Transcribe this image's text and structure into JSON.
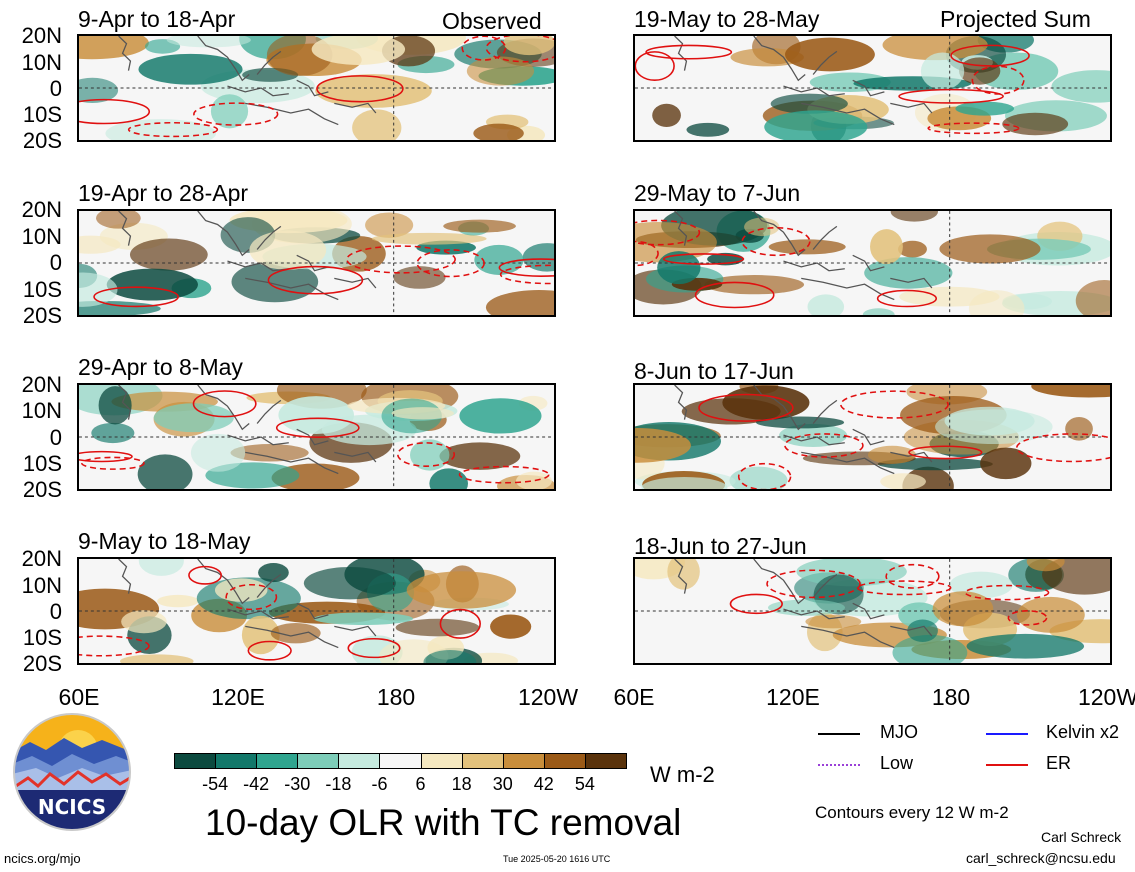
{
  "panels": [
    {
      "id": "p1",
      "title": "9-Apr to 18-Apr",
      "tag": "Observed",
      "seed": 3
    },
    {
      "id": "p2",
      "title": "19-May to 28-May",
      "tag": "Projected Sum",
      "seed": 11
    },
    {
      "id": "p3",
      "title": "19-Apr to 28-Apr",
      "tag": "",
      "seed": 7
    },
    {
      "id": "p4",
      "title": "29-May to 7-Jun",
      "tag": "",
      "seed": 19
    },
    {
      "id": "p5",
      "title": "29-Apr to 8-May",
      "tag": "",
      "seed": 23
    },
    {
      "id": "p6",
      "title": "8-Jun to 17-Jun",
      "tag": "",
      "seed": 29
    },
    {
      "id": "p7",
      "title": "9-May to 18-May",
      "tag": "",
      "seed": 31
    },
    {
      "id": "p8",
      "title": "18-Jun to 27-Jun",
      "tag": "",
      "seed": 37
    }
  ],
  "ylabels": [
    "20N",
    "10N",
    "0",
    "10S",
    "20S"
  ],
  "xlabels": [
    "60E",
    "120E",
    "180",
    "120W"
  ],
  "colorbar": {
    "colors": [
      "#0c4a3f",
      "#12786a",
      "#2fa58f",
      "#7dcdb9",
      "#c5eadf",
      "#f6f6f6",
      "#f5e8c0",
      "#e3c27c",
      "#c98e3b",
      "#9b5a17",
      "#5a330c"
    ],
    "labels": [
      "-54",
      "-42",
      "-30",
      "-18",
      "-6",
      "6",
      "18",
      "30",
      "42",
      "54"
    ],
    "units": "W m-2"
  },
  "main_title": "10-day OLR with TC removal",
  "legend": {
    "items": [
      {
        "label": "MJO",
        "color": "#000000"
      },
      {
        "label": "Kelvin x2",
        "color": "#1a1aff"
      },
      {
        "label": "Low",
        "color": "#9a40d8"
      },
      {
        "label": "ER",
        "color": "#e01010"
      }
    ],
    "contour_note": "Contours every 12 W m-2",
    "author": "Carl Schreck",
    "email": "carl_schreck@ncsu.edu"
  },
  "footer": {
    "url": "ncics.org/mjo",
    "timestamp": "Tue 2025-05-20 1616 UTC"
  },
  "logo": {
    "text": "NCICS"
  },
  "chart_data": {
    "type": "heatmap",
    "title": "10-day OLR with TC removal",
    "variable": "OLR anomaly",
    "units": "W m-2",
    "xlim_labels": [
      "60E",
      "120W"
    ],
    "ylim_labels": [
      "20S",
      "20N"
    ],
    "color_levels": [
      -54,
      -42,
      -30,
      -18,
      -6,
      6,
      18,
      30,
      42,
      54
    ],
    "contour_interval": 12,
    "panels_observed": [
      "9-Apr to 18-Apr",
      "19-Apr to 28-Apr",
      "29-Apr to 8-May",
      "9-May to 18-May"
    ],
    "panels_projected": [
      "19-May to 28-May",
      "29-May to 7-Jun",
      "8-Jun to 17-Jun",
      "18-Jun to 27-Jun"
    ],
    "contour_series": [
      "MJO",
      "Kelvin x2",
      "Low",
      "ER"
    ]
  }
}
